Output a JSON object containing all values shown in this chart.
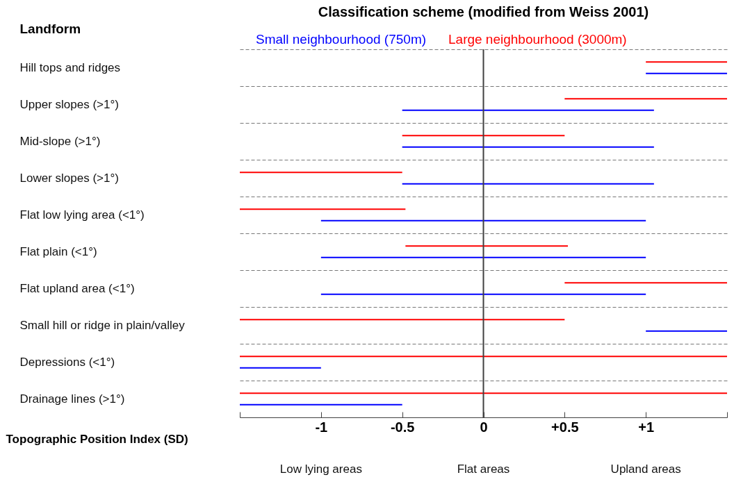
{
  "chart_data": {
    "type": "bar",
    "orientation": "horizontal",
    "title": "Classification scheme (modified from Weiss 2001)",
    "ylabel": "Landform",
    "xlabel": "Topographic Position Index (SD)",
    "categories": [
      "Hill tops and ridges",
      "Upper slopes (>1°)",
      "Mid-slope (>1°)",
      "Lower slopes (>1°)",
      "Flat low lying area (<1°)",
      "Flat plain (<1°)",
      "Flat upland area (<1°)",
      "Small hill or ridge in plain/valley",
      "Depressions (<1°)",
      "Drainage lines (>1°)"
    ],
    "series": [
      {
        "name": "Small neighbourhood (750m)",
        "color": "#0000ff",
        "base": [
          1,
          -0.5,
          -0.5,
          -0.5,
          -1,
          -1,
          -1,
          1,
          -1.5,
          -1.5
        ],
        "values": [
          0.5,
          1.55,
          1.55,
          1.55,
          2,
          2,
          2,
          0.5,
          0.5,
          1
        ]
      },
      {
        "name": "Large neighbourhood (3000m)",
        "color": "#ff0000",
        "base": [
          1,
          0.5,
          -0.5,
          -1.5,
          -1.5,
          -0.48,
          0.5,
          -1.5,
          -1.5,
          -1.5
        ],
        "values": [
          0.5,
          1,
          1,
          1,
          1.02,
          1,
          1,
          2,
          3,
          3
        ]
      }
    ],
    "xlim": [
      -1.5,
      1.5
    ],
    "xticks": [
      {
        "value": -1.5,
        "label": null
      },
      -1,
      -0.5,
      0,
      {
        "value": 0.5,
        "label": "+0.5"
      },
      {
        "value": 1,
        "label": "+1"
      },
      {
        "value": 1.5,
        "label": null
      }
    ],
    "ref_lines": [
      {
        "axis": "x",
        "value": 0,
        "color": "#404040"
      }
    ],
    "grid": "y",
    "legend": "top",
    "annotations": [
      "Low lying areas",
      "Flat areas",
      "Upland areas"
    ]
  }
}
